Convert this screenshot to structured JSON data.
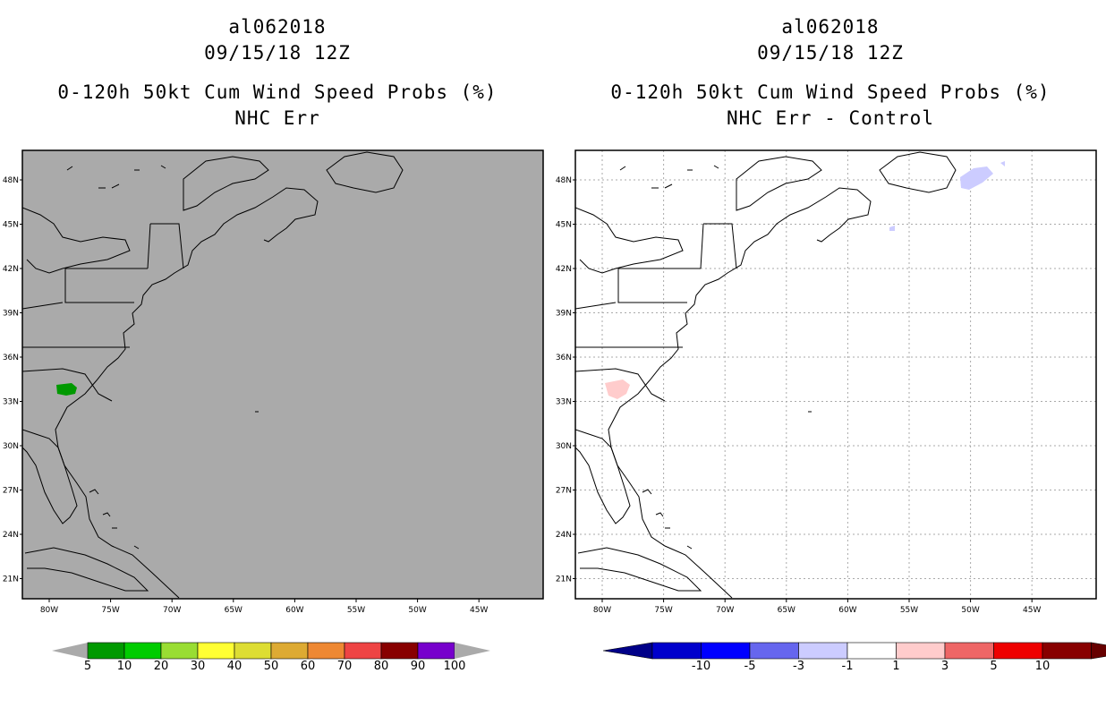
{
  "left": {
    "storm_id": "al062018",
    "date": "09/15/18 12Z",
    "product": "0-120h 50kt Cum Wind Speed Probs (%)",
    "subtitle": "NHC Err",
    "background": "#aaaaaa",
    "lat_labels": [
      "48N",
      "45N",
      "42N",
      "39N",
      "36N",
      "33N",
      "30N",
      "27N",
      "24N",
      "21N"
    ],
    "lon_labels": [
      "80W",
      "75W",
      "70W",
      "65W",
      "60W",
      "55W",
      "50W",
      "45W"
    ],
    "colorbar": {
      "labels": [
        "5",
        "10",
        "20",
        "30",
        "40",
        "50",
        "60",
        "70",
        "80",
        "90",
        "100"
      ],
      "colors": [
        "#009900",
        "#00cc00",
        "#99dd33",
        "#ffff33",
        "#dddd33",
        "#ddaa33",
        "#ee8833",
        "#ee4444",
        "#880000",
        "#7700cc"
      ],
      "end_color": "#aaaaaa"
    }
  },
  "right": {
    "storm_id": "al062018",
    "date": "09/15/18 12Z",
    "product": "0-120h 50kt Cum Wind Speed Probs (%)",
    "subtitle": "NHC Err - Control",
    "background": "#ffffff",
    "lat_labels": [
      "48N",
      "45N",
      "42N",
      "39N",
      "36N",
      "33N",
      "30N",
      "27N",
      "24N",
      "21N"
    ],
    "lon_labels": [
      "80W",
      "75W",
      "70W",
      "65W",
      "60W",
      "55W",
      "50W",
      "45W"
    ],
    "colorbar": {
      "labels": [
        "-10",
        "-5",
        "-3",
        "-1",
        "1",
        "3",
        "5",
        "10"
      ],
      "colors": [
        "#0000cc",
        "#0000ff",
        "#6666ee",
        "#ccccff",
        "#ffffff",
        "#ffcccc",
        "#ee6666",
        "#ee0000",
        "#880000"
      ],
      "end_low": "#000088",
      "end_high": "#660000"
    }
  }
}
